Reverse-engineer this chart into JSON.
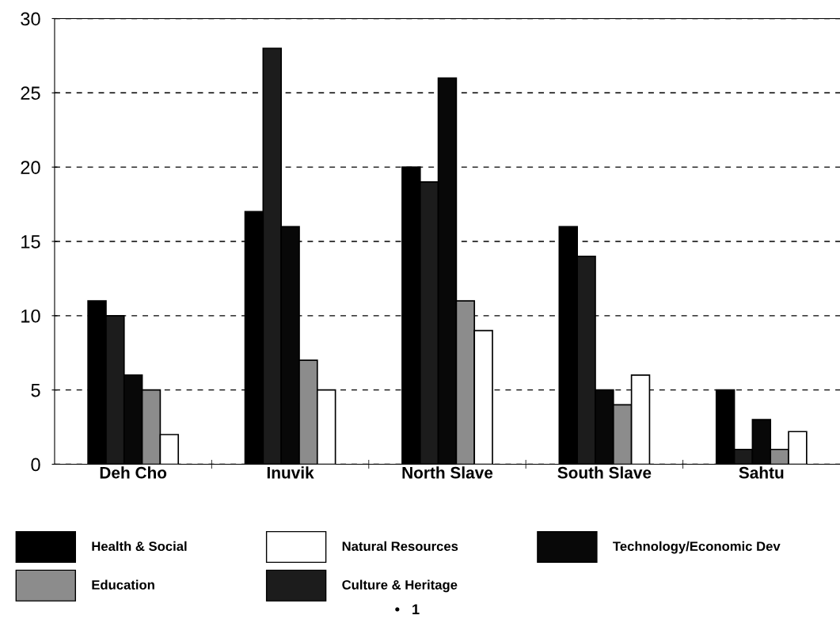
{
  "chart_data": {
    "type": "bar",
    "categories": [
      "Deh Cho",
      "Inuvik",
      "North Slave",
      "South Slave",
      "Sahtu"
    ],
    "series": [
      {
        "name": "Health & Social",
        "color": "#000000",
        "values": [
          11,
          17,
          20,
          16,
          5
        ]
      },
      {
        "name": "Culture & Heritage",
        "color": "#1c1c1c",
        "values": [
          10,
          28,
          19,
          14,
          1
        ]
      },
      {
        "name": "Technology/Economic Dev",
        "color": "#080808",
        "values": [
          6,
          16,
          26,
          5,
          3
        ]
      },
      {
        "name": "Education",
        "color": "#8c8c8c",
        "values": [
          5,
          7,
          11,
          4,
          1
        ]
      },
      {
        "name": "Natural Resources",
        "color": "#ffffff",
        "values": [
          2,
          5,
          9,
          6,
          2.2
        ]
      }
    ],
    "ylim": [
      0,
      30
    ],
    "yticks": [
      0,
      5,
      10,
      15,
      20,
      25,
      30
    ],
    "grid": "y",
    "line_style": "dashed",
    "legend": "bottom",
    "annotations": [
      "•   1"
    ]
  }
}
